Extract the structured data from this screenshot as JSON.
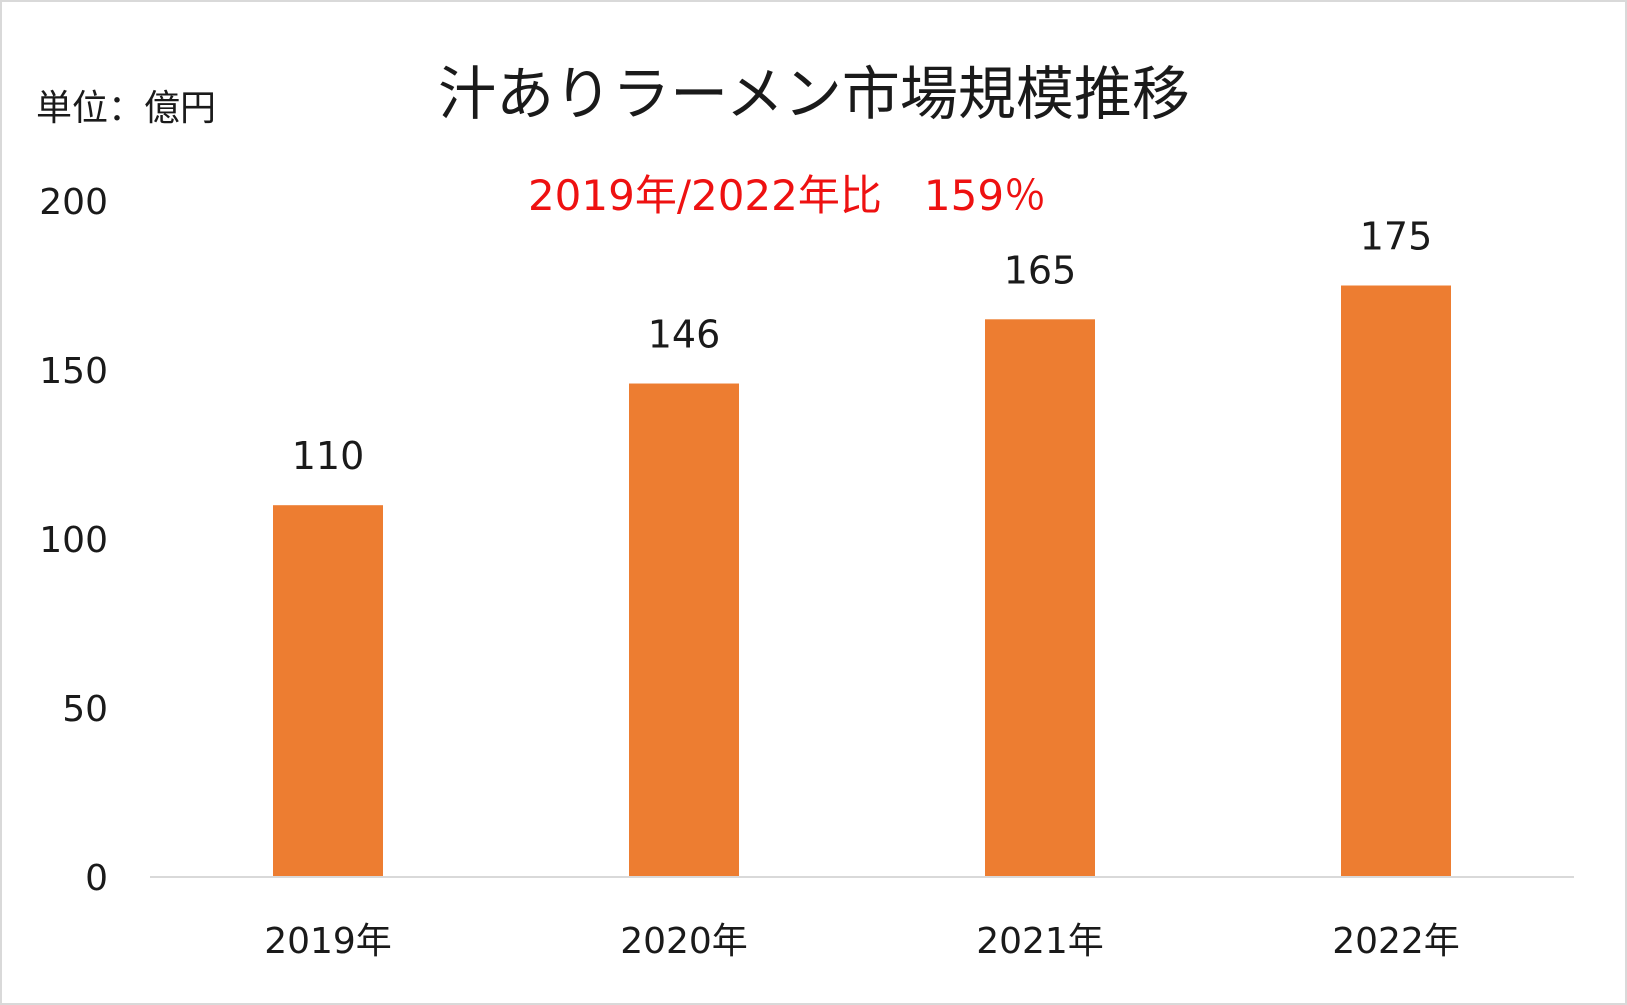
{
  "chart_data": {
    "type": "bar",
    "title": "汁ありラーメン市場規模推移",
    "unit_label": "単位：億円",
    "annotation": "2019年/2022年比　159％",
    "categories": [
      "2019年",
      "2020年",
      "2021年",
      "2022年"
    ],
    "series": [
      {
        "values": [
          110,
          146,
          165,
          175
        ]
      }
    ],
    "data_labels": [
      "110",
      "146",
      "165",
      "175"
    ],
    "y_ticks": [
      "0",
      "50",
      "100",
      "150",
      "200"
    ],
    "ylim": [
      0,
      200
    ],
    "grid": false,
    "legend": "none",
    "colors": {
      "bar": "#ed7d31",
      "annotation": "#ee1111",
      "axis": "#d9d9d9",
      "text": "#1a1a1a"
    }
  }
}
